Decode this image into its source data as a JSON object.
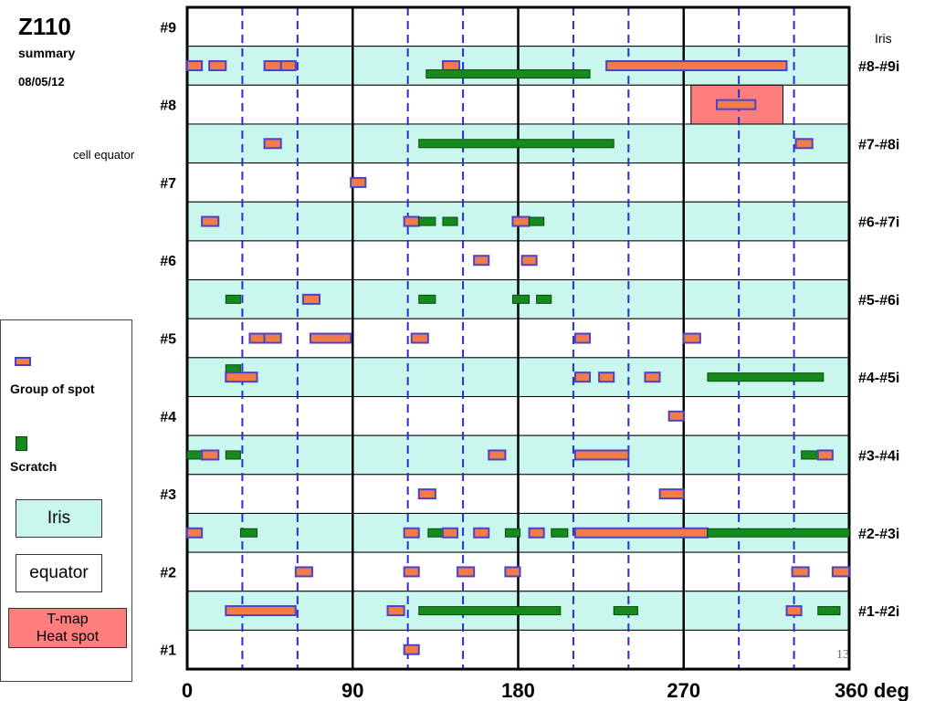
{
  "header": {
    "title": "Z110",
    "subtitle": "summary",
    "date": "08/05/12"
  },
  "annotations": {
    "cell_equator": "cell equator",
    "iris_top": "Iris",
    "page_number": "13"
  },
  "legend": {
    "spot_label": "Group of spot",
    "scratch_label": "Scratch",
    "iris_label": "Iris",
    "equator_label": "equator",
    "tmap_label_line1": "T-map",
    "tmap_label_line2": "Heat spot"
  },
  "colors": {
    "iris_band": "#c9f7ed",
    "equator_band": "#ffffff",
    "spot_fill": "#f27b4a",
    "spot_border": "#4c43c9",
    "scratch_fill": "#158a1d",
    "scratch_border": "#0a4a0d",
    "tmap_fill": "#fe7d7d",
    "dashed_line": "#2b2bd6"
  },
  "chart_data": {
    "type": "diagram",
    "x_unit": "deg",
    "xlim": [
      0,
      360
    ],
    "x_ticks": [
      "0",
      "90",
      "180",
      "270",
      "360 deg"
    ],
    "x_tick_values": [
      0,
      90,
      180,
      270,
      360
    ],
    "dashed_lines_deg": [
      30,
      60,
      120,
      150,
      210,
      240,
      300,
      330
    ],
    "rows": [
      {
        "name": "#9",
        "type": "equator",
        "side": "left"
      },
      {
        "name": "#8-#9i",
        "type": "iris",
        "side": "right"
      },
      {
        "name": "#8",
        "type": "equator",
        "side": "left"
      },
      {
        "name": "#7-#8i",
        "type": "iris",
        "side": "right"
      },
      {
        "name": "#7",
        "type": "equator",
        "side": "left"
      },
      {
        "name": "#6-#7i",
        "type": "iris",
        "side": "right"
      },
      {
        "name": "#6",
        "type": "equator",
        "side": "left"
      },
      {
        "name": "#5-#6i",
        "type": "iris",
        "side": "right"
      },
      {
        "name": "#5",
        "type": "equator",
        "side": "left"
      },
      {
        "name": "#4-#5i",
        "type": "iris",
        "side": "right"
      },
      {
        "name": "#4",
        "type": "equator",
        "side": "left"
      },
      {
        "name": "#3-#4i",
        "type": "iris",
        "side": "right"
      },
      {
        "name": "#3",
        "type": "equator",
        "side": "left"
      },
      {
        "name": "#2-#3i",
        "type": "iris",
        "side": "right"
      },
      {
        "name": "#2",
        "type": "equator",
        "side": "left"
      },
      {
        "name": "#1-#2i",
        "type": "iris",
        "side": "right"
      },
      {
        "name": "#1",
        "type": "equator",
        "side": "left"
      }
    ],
    "tmap": [
      {
        "row": 2,
        "x0": 274,
        "x1": 324
      }
    ],
    "marks": [
      {
        "row": 1,
        "kind": "spot",
        "x0": 0,
        "x1": 8,
        "off": 0
      },
      {
        "row": 1,
        "kind": "spot",
        "x0": 12,
        "x1": 21,
        "off": 0
      },
      {
        "row": 1,
        "kind": "spot",
        "x0": 42,
        "x1": 51,
        "off": 0
      },
      {
        "row": 1,
        "kind": "spot",
        "x0": 51,
        "x1": 59,
        "off": 0
      },
      {
        "row": 1,
        "kind": "spot",
        "x0": 139,
        "x1": 148,
        "off": 0
      },
      {
        "row": 1,
        "kind": "scratch",
        "x0": 130,
        "x1": 219,
        "off": 1
      },
      {
        "row": 1,
        "kind": "spot",
        "x0": 228,
        "x1": 326,
        "off": 0
      },
      {
        "row": 2,
        "kind": "spot",
        "x0": 288,
        "x1": 309,
        "off": 0
      },
      {
        "row": 3,
        "kind": "spot",
        "x0": 42,
        "x1": 51,
        "off": 0
      },
      {
        "row": 3,
        "kind": "scratch",
        "x0": 126,
        "x1": 232,
        "off": 0
      },
      {
        "row": 3,
        "kind": "spot",
        "x0": 331,
        "x1": 340,
        "off": 0
      },
      {
        "row": 4,
        "kind": "spot",
        "x0": 89,
        "x1": 97,
        "off": 0
      },
      {
        "row": 5,
        "kind": "spot",
        "x0": 8,
        "x1": 17,
        "off": 0
      },
      {
        "row": 5,
        "kind": "spot",
        "x0": 118,
        "x1": 126,
        "off": 0
      },
      {
        "row": 5,
        "kind": "scratch",
        "x0": 126,
        "x1": 135,
        "off": 0
      },
      {
        "row": 5,
        "kind": "scratch",
        "x0": 139,
        "x1": 147,
        "off": 0
      },
      {
        "row": 5,
        "kind": "spot",
        "x0": 177,
        "x1": 186,
        "off": 0
      },
      {
        "row": 5,
        "kind": "scratch",
        "x0": 186,
        "x1": 194,
        "off": 0
      },
      {
        "row": 6,
        "kind": "spot",
        "x0": 156,
        "x1": 164,
        "off": 0
      },
      {
        "row": 6,
        "kind": "spot",
        "x0": 182,
        "x1": 190,
        "off": 0
      },
      {
        "row": 7,
        "kind": "scratch",
        "x0": 21,
        "x1": 29,
        "off": 0
      },
      {
        "row": 7,
        "kind": "spot",
        "x0": 63,
        "x1": 72,
        "off": 0
      },
      {
        "row": 7,
        "kind": "scratch",
        "x0": 126,
        "x1": 135,
        "off": 0
      },
      {
        "row": 7,
        "kind": "scratch",
        "x0": 177,
        "x1": 186,
        "off": 0
      },
      {
        "row": 7,
        "kind": "scratch",
        "x0": 190,
        "x1": 198,
        "off": 0
      },
      {
        "row": 8,
        "kind": "spot",
        "x0": 34,
        "x1": 42,
        "off": 0
      },
      {
        "row": 8,
        "kind": "spot",
        "x0": 42,
        "x1": 51,
        "off": 0
      },
      {
        "row": 8,
        "kind": "spot",
        "x0": 67,
        "x1": 89,
        "off": 0
      },
      {
        "row": 8,
        "kind": "spot",
        "x0": 122,
        "x1": 131,
        "off": 0
      },
      {
        "row": 8,
        "kind": "spot",
        "x0": 211,
        "x1": 219,
        "off": 0
      },
      {
        "row": 8,
        "kind": "spot",
        "x0": 270,
        "x1": 279,
        "off": 0
      },
      {
        "row": 9,
        "kind": "scratch",
        "x0": 21,
        "x1": 29,
        "off": -1
      },
      {
        "row": 9,
        "kind": "spot",
        "x0": 21,
        "x1": 38,
        "off": 0
      },
      {
        "row": 9,
        "kind": "spot",
        "x0": 211,
        "x1": 219,
        "off": 0
      },
      {
        "row": 9,
        "kind": "spot",
        "x0": 224,
        "x1": 232,
        "off": 0
      },
      {
        "row": 9,
        "kind": "spot",
        "x0": 249,
        "x1": 257,
        "off": 0
      },
      {
        "row": 9,
        "kind": "scratch",
        "x0": 283,
        "x1": 346,
        "off": 0
      },
      {
        "row": 10,
        "kind": "spot",
        "x0": 262,
        "x1": 270,
        "off": 0
      },
      {
        "row": 11,
        "kind": "scratch",
        "x0": 0,
        "x1": 8,
        "off": 0
      },
      {
        "row": 11,
        "kind": "spot",
        "x0": 8,
        "x1": 17,
        "off": 0
      },
      {
        "row": 11,
        "kind": "scratch",
        "x0": 21,
        "x1": 29,
        "off": 0
      },
      {
        "row": 11,
        "kind": "spot",
        "x0": 164,
        "x1": 173,
        "off": 0
      },
      {
        "row": 11,
        "kind": "spot",
        "x0": 211,
        "x1": 240,
        "off": 0
      },
      {
        "row": 11,
        "kind": "scratch",
        "x0": 334,
        "x1": 343,
        "off": 0
      },
      {
        "row": 11,
        "kind": "spot",
        "x0": 343,
        "x1": 351,
        "off": 0
      },
      {
        "row": 12,
        "kind": "spot",
        "x0": 126,
        "x1": 135,
        "off": 0
      },
      {
        "row": 12,
        "kind": "spot",
        "x0": 257,
        "x1": 270,
        "off": 0
      },
      {
        "row": 13,
        "kind": "spot",
        "x0": 0,
        "x1": 8,
        "off": 0
      },
      {
        "row": 13,
        "kind": "scratch",
        "x0": 29,
        "x1": 38,
        "off": 0
      },
      {
        "row": 13,
        "kind": "spot",
        "x0": 118,
        "x1": 126,
        "off": 0
      },
      {
        "row": 13,
        "kind": "scratch",
        "x0": 131,
        "x1": 139,
        "off": 0
      },
      {
        "row": 13,
        "kind": "spot",
        "x0": 139,
        "x1": 147,
        "off": 0
      },
      {
        "row": 13,
        "kind": "spot",
        "x0": 156,
        "x1": 164,
        "off": 0
      },
      {
        "row": 13,
        "kind": "scratch",
        "x0": 173,
        "x1": 181,
        "off": 0
      },
      {
        "row": 13,
        "kind": "spot",
        "x0": 186,
        "x1": 194,
        "off": 0
      },
      {
        "row": 13,
        "kind": "scratch",
        "x0": 198,
        "x1": 207,
        "off": 0
      },
      {
        "row": 13,
        "kind": "spot",
        "x0": 211,
        "x1": 283,
        "off": 0
      },
      {
        "row": 13,
        "kind": "scratch",
        "x0": 283,
        "x1": 360,
        "off": 0
      },
      {
        "row": 14,
        "kind": "spot",
        "x0": 59,
        "x1": 68,
        "off": 0
      },
      {
        "row": 14,
        "kind": "spot",
        "x0": 118,
        "x1": 126,
        "off": 0
      },
      {
        "row": 14,
        "kind": "spot",
        "x0": 147,
        "x1": 156,
        "off": 0
      },
      {
        "row": 14,
        "kind": "spot",
        "x0": 173,
        "x1": 181,
        "off": 0
      },
      {
        "row": 14,
        "kind": "spot",
        "x0": 329,
        "x1": 338,
        "off": 0
      },
      {
        "row": 14,
        "kind": "spot",
        "x0": 351,
        "x1": 360,
        "off": 0
      },
      {
        "row": 15,
        "kind": "spot",
        "x0": 21,
        "x1": 59,
        "off": 0
      },
      {
        "row": 15,
        "kind": "spot",
        "x0": 109,
        "x1": 118,
        "off": 0
      },
      {
        "row": 15,
        "kind": "scratch",
        "x0": 126,
        "x1": 203,
        "off": 0
      },
      {
        "row": 15,
        "kind": "scratch",
        "x0": 232,
        "x1": 245,
        "off": 0
      },
      {
        "row": 15,
        "kind": "spot",
        "x0": 326,
        "x1": 334,
        "off": 0
      },
      {
        "row": 15,
        "kind": "scratch",
        "x0": 343,
        "x1": 355,
        "off": 0
      },
      {
        "row": 16,
        "kind": "spot",
        "x0": 118,
        "x1": 126,
        "off": 0
      }
    ]
  }
}
